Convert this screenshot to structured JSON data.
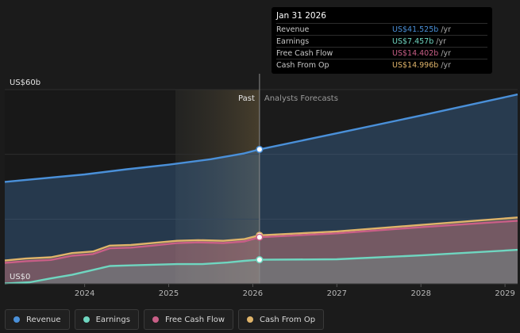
{
  "tooltip": {
    "date": "Jan 31 2026",
    "rows": [
      {
        "name": "Revenue",
        "value": "US$41.525b",
        "unit": "/yr",
        "color": "#4a90d9"
      },
      {
        "name": "Earnings",
        "value": "US$7.457b",
        "unit": "/yr",
        "color": "#6fd6c0"
      },
      {
        "name": "Free Cash Flow",
        "value": "US$14.402b",
        "unit": "/yr",
        "color": "#c95f87"
      },
      {
        "name": "Cash From Op",
        "value": "US$14.996b",
        "unit": "/yr",
        "color": "#e0b46a"
      }
    ]
  },
  "legend": [
    {
      "label": "Revenue",
      "color": "#4a90d9"
    },
    {
      "label": "Earnings",
      "color": "#6fd6c0"
    },
    {
      "label": "Free Cash Flow",
      "color": "#c95f87"
    },
    {
      "label": "Cash From Op",
      "color": "#e0b46a"
    }
  ],
  "chart_data": {
    "type": "area",
    "y_top_label": "US$60b",
    "y_zero_label": "US$0",
    "past_label": "Past",
    "forecast_label": "Analysts Forecasts",
    "ylim": [
      0,
      60
    ],
    "xlim": [
      2023.05,
      2029.15
    ],
    "divider_x": 2026.08,
    "past_shade_start": 2025.08,
    "x_ticks": [
      {
        "value": 2024,
        "label": "2024"
      },
      {
        "value": 2025,
        "label": "2025"
      },
      {
        "value": 2026,
        "label": "2026"
      },
      {
        "value": 2027,
        "label": "2027"
      },
      {
        "value": 2028,
        "label": "2028"
      },
      {
        "value": 2029,
        "label": "2029"
      }
    ],
    "gridlines": [
      0,
      20,
      40,
      60
    ],
    "series": [
      {
        "name": "Revenue",
        "color": "#4a90d9",
        "points": [
          [
            2023.05,
            31.5
          ],
          [
            2024.0,
            33.8
          ],
          [
            2024.5,
            35.4
          ],
          [
            2025.0,
            36.8
          ],
          [
            2025.5,
            38.5
          ],
          [
            2025.9,
            40.3
          ],
          [
            2026.08,
            41.525
          ],
          [
            2027.0,
            46.5
          ],
          [
            2028.0,
            52.0
          ],
          [
            2029.15,
            58.5
          ]
        ],
        "marker": [
          2026.08,
          41.525
        ]
      },
      {
        "name": "Cash From Op",
        "color": "#e0b46a",
        "points": [
          [
            2023.05,
            7.2
          ],
          [
            2023.3,
            7.8
          ],
          [
            2023.6,
            8.2
          ],
          [
            2023.85,
            9.5
          ],
          [
            2024.1,
            10.0
          ],
          [
            2024.3,
            11.8
          ],
          [
            2024.55,
            12.0
          ],
          [
            2024.8,
            12.6
          ],
          [
            2025.1,
            13.3
          ],
          [
            2025.35,
            13.5
          ],
          [
            2025.65,
            13.3
          ],
          [
            2025.9,
            13.8
          ],
          [
            2026.08,
            14.996
          ],
          [
            2027.0,
            16.2
          ],
          [
            2028.0,
            18.2
          ],
          [
            2029.15,
            20.5
          ]
        ],
        "marker": [
          2026.08,
          14.996
        ]
      },
      {
        "name": "Free Cash Flow",
        "color": "#c95f87",
        "points": [
          [
            2023.05,
            6.5
          ],
          [
            2023.3,
            7.0
          ],
          [
            2023.6,
            7.4
          ],
          [
            2023.85,
            8.7
          ],
          [
            2024.1,
            9.2
          ],
          [
            2024.3,
            11.0
          ],
          [
            2024.55,
            11.2
          ],
          [
            2024.8,
            11.8
          ],
          [
            2025.1,
            12.6
          ],
          [
            2025.35,
            12.8
          ],
          [
            2025.65,
            12.6
          ],
          [
            2025.9,
            13.1
          ],
          [
            2026.08,
            14.402
          ],
          [
            2027.0,
            15.6
          ],
          [
            2028.0,
            17.5
          ],
          [
            2029.15,
            19.5
          ]
        ],
        "marker": [
          2026.08,
          14.402
        ]
      },
      {
        "name": "Earnings",
        "color": "#6fd6c0",
        "points": [
          [
            2023.05,
            0.1
          ],
          [
            2023.35,
            0.5
          ],
          [
            2023.6,
            1.7
          ],
          [
            2023.85,
            2.8
          ],
          [
            2024.05,
            4.0
          ],
          [
            2024.3,
            5.5
          ],
          [
            2024.55,
            5.7
          ],
          [
            2024.8,
            5.9
          ],
          [
            2025.1,
            6.1
          ],
          [
            2025.4,
            6.1
          ],
          [
            2025.7,
            6.6
          ],
          [
            2025.9,
            7.1
          ],
          [
            2026.08,
            7.457
          ],
          [
            2027.0,
            7.6
          ],
          [
            2028.0,
            8.8
          ],
          [
            2029.15,
            10.5
          ]
        ],
        "marker": [
          2026.08,
          7.457
        ]
      }
    ]
  }
}
